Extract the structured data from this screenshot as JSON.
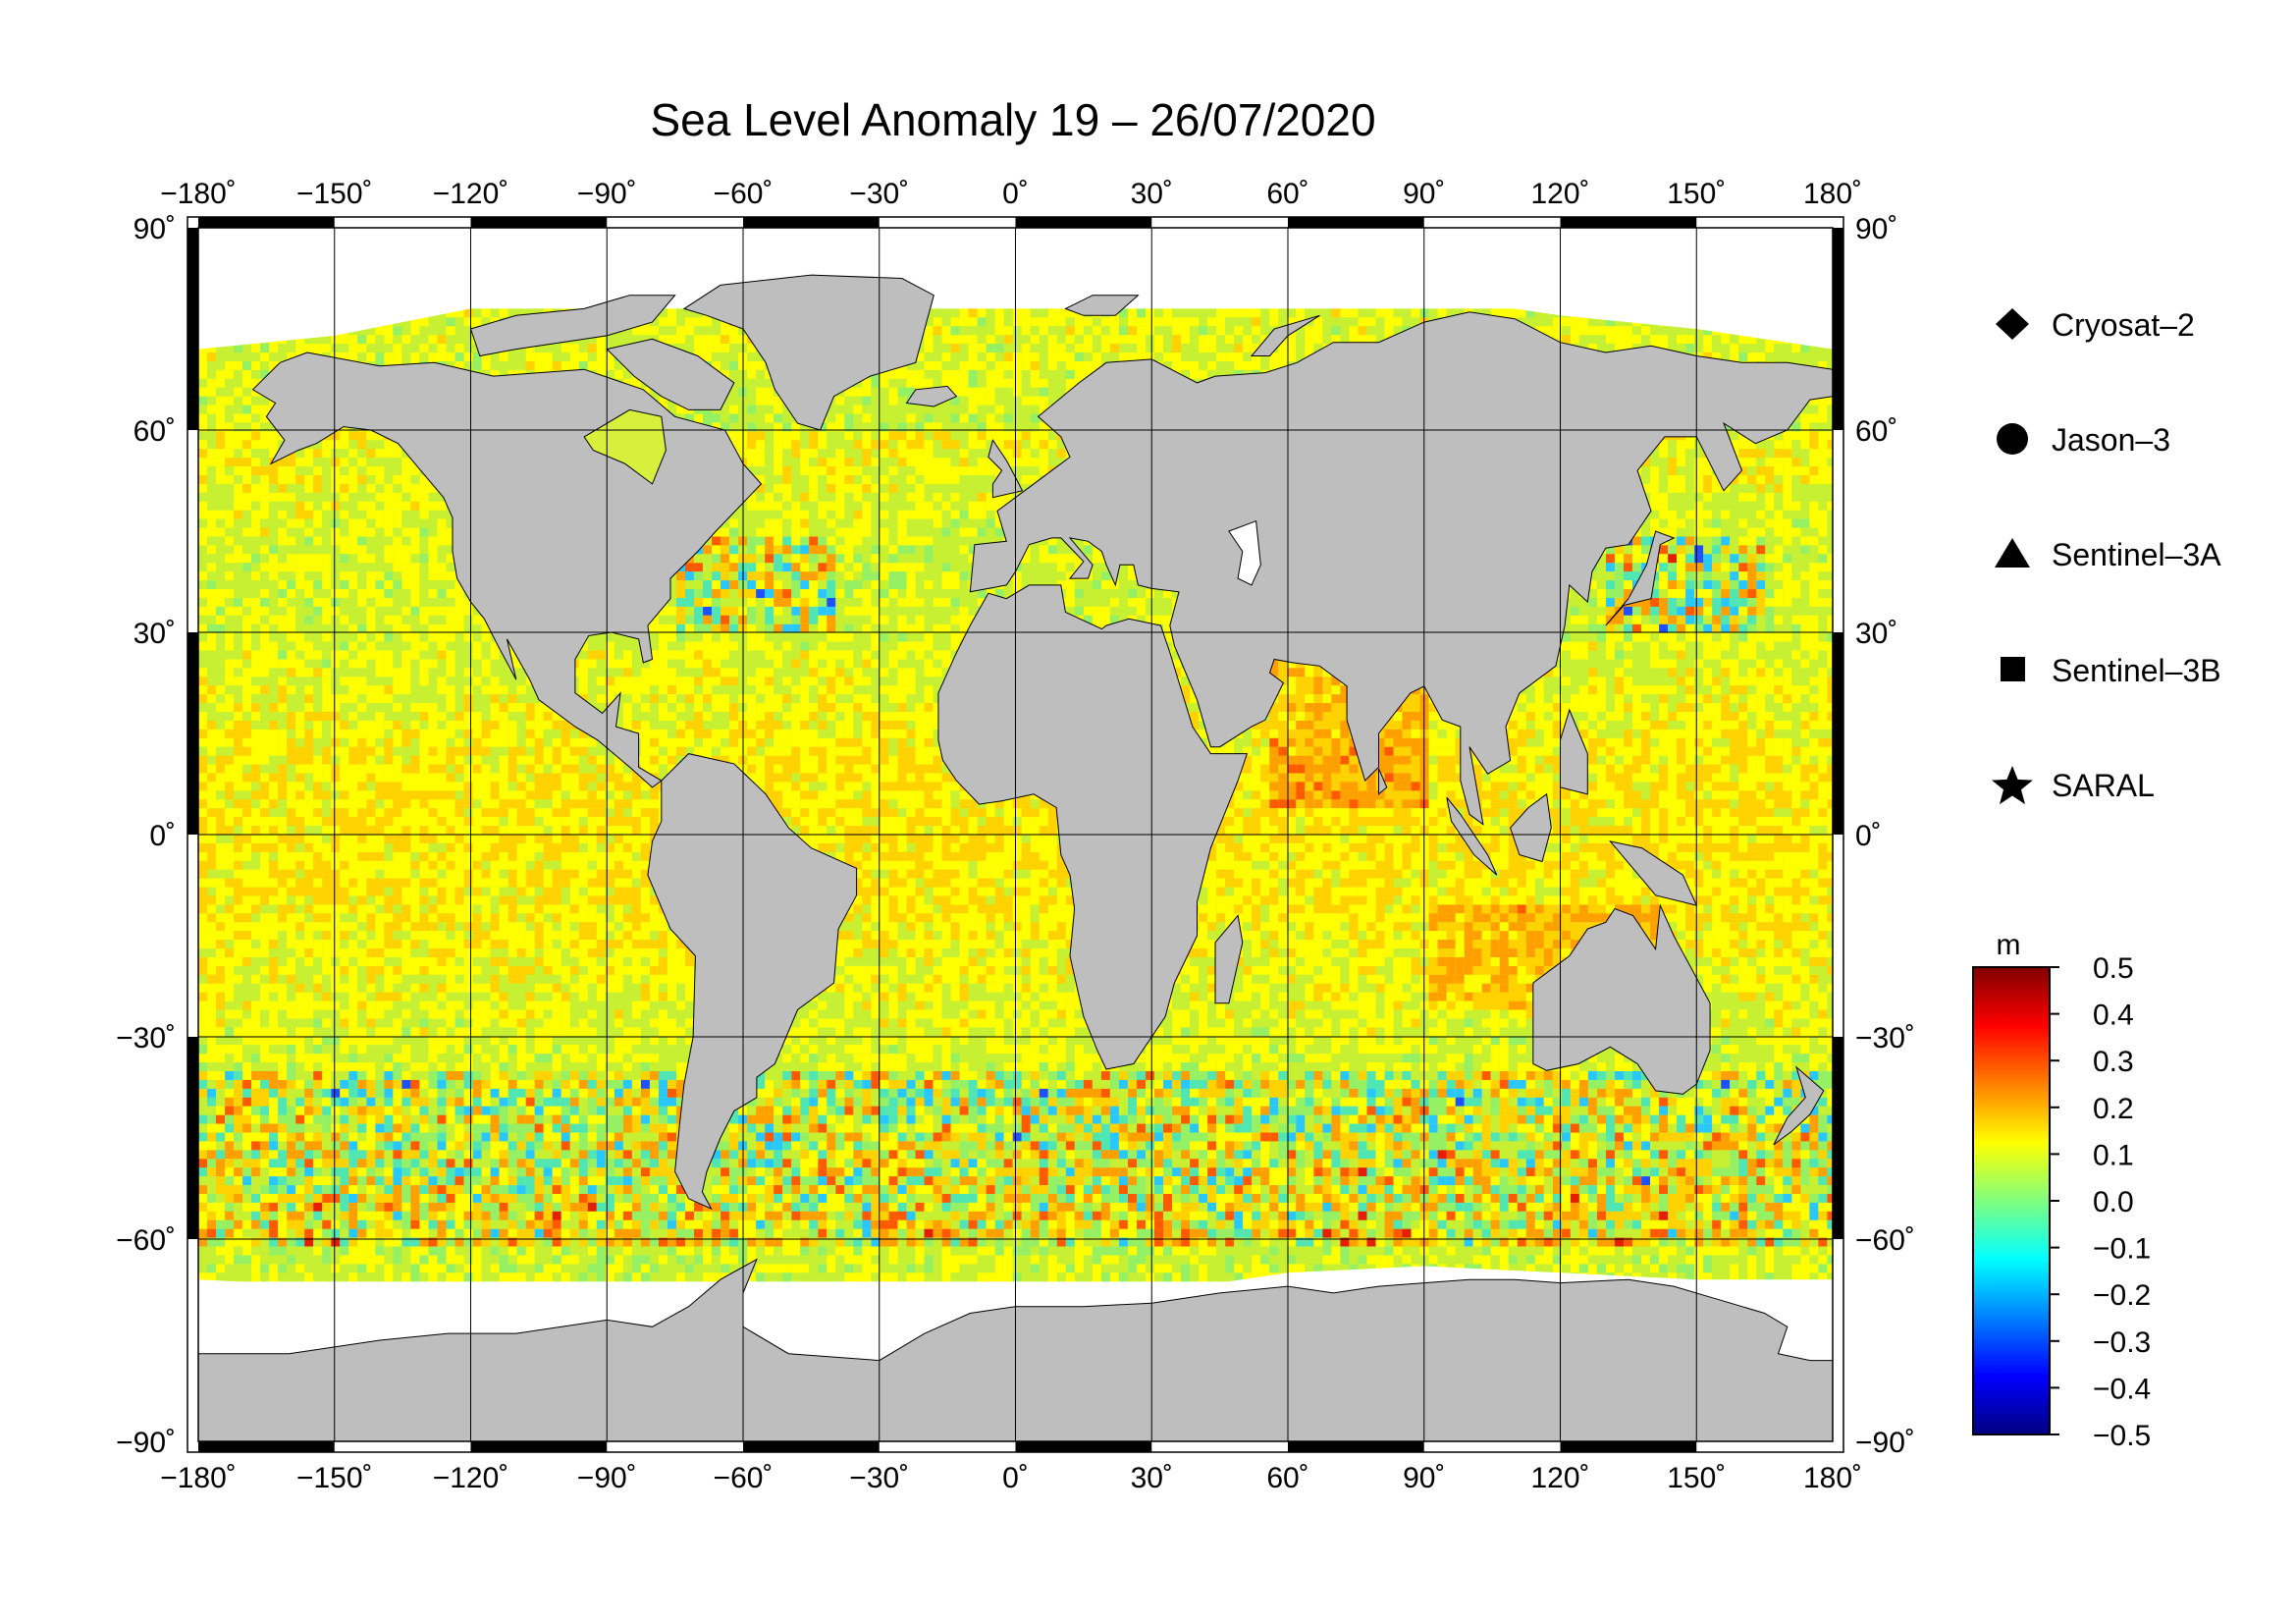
{
  "title": "Sea Level Anomaly 19 – 26/07/2020",
  "map": {
    "projection": "plate-carree",
    "lon_range": [
      -180,
      180
    ],
    "lat_range": [
      -90,
      90
    ],
    "grid_step_deg": 30,
    "land_color": "#bebebe",
    "ice_color": "#ffffff",
    "frame_color": "#000000",
    "lon_ticks": [
      "−180˚",
      "−150˚",
      "−120˚",
      "−90˚",
      "−60˚",
      "−30˚",
      "0˚",
      "30˚",
      "60˚",
      "90˚",
      "120˚",
      "150˚",
      "180˚"
    ],
    "lat_ticks": [
      "90˚",
      "60˚",
      "30˚",
      "0˚",
      "−30˚",
      "−60˚",
      "−90˚"
    ]
  },
  "legend": {
    "items": [
      {
        "label": "Cryosat–2",
        "marker": "diamond"
      },
      {
        "label": "Jason–3",
        "marker": "circle"
      },
      {
        "label": "Sentinel–3A",
        "marker": "triangle"
      },
      {
        "label": "Sentinel–3B",
        "marker": "square"
      },
      {
        "label": "SARAL",
        "marker": "star"
      }
    ]
  },
  "colorbar": {
    "unit": "m",
    "min": -0.5,
    "max": 0.5,
    "tick_labels": [
      "0.5",
      "0.4",
      "0.3",
      "0.2",
      "0.1",
      "0.0",
      "−0.1",
      "−0.2",
      "−0.3",
      "−0.4",
      "−0.5"
    ],
    "stops": [
      "#000080",
      "#0000ff",
      "#0080ff",
      "#00ffff",
      "#80ff80",
      "#ffff00",
      "#ff8000",
      "#ff0000",
      "#800000"
    ]
  },
  "ocean_palette": [
    "#1e50ff",
    "#28c8ff",
    "#50e6b4",
    "#96f064",
    "#c8f032",
    "#ffff00",
    "#ffd200",
    "#ffa000",
    "#ff5a00",
    "#e61e00"
  ]
}
